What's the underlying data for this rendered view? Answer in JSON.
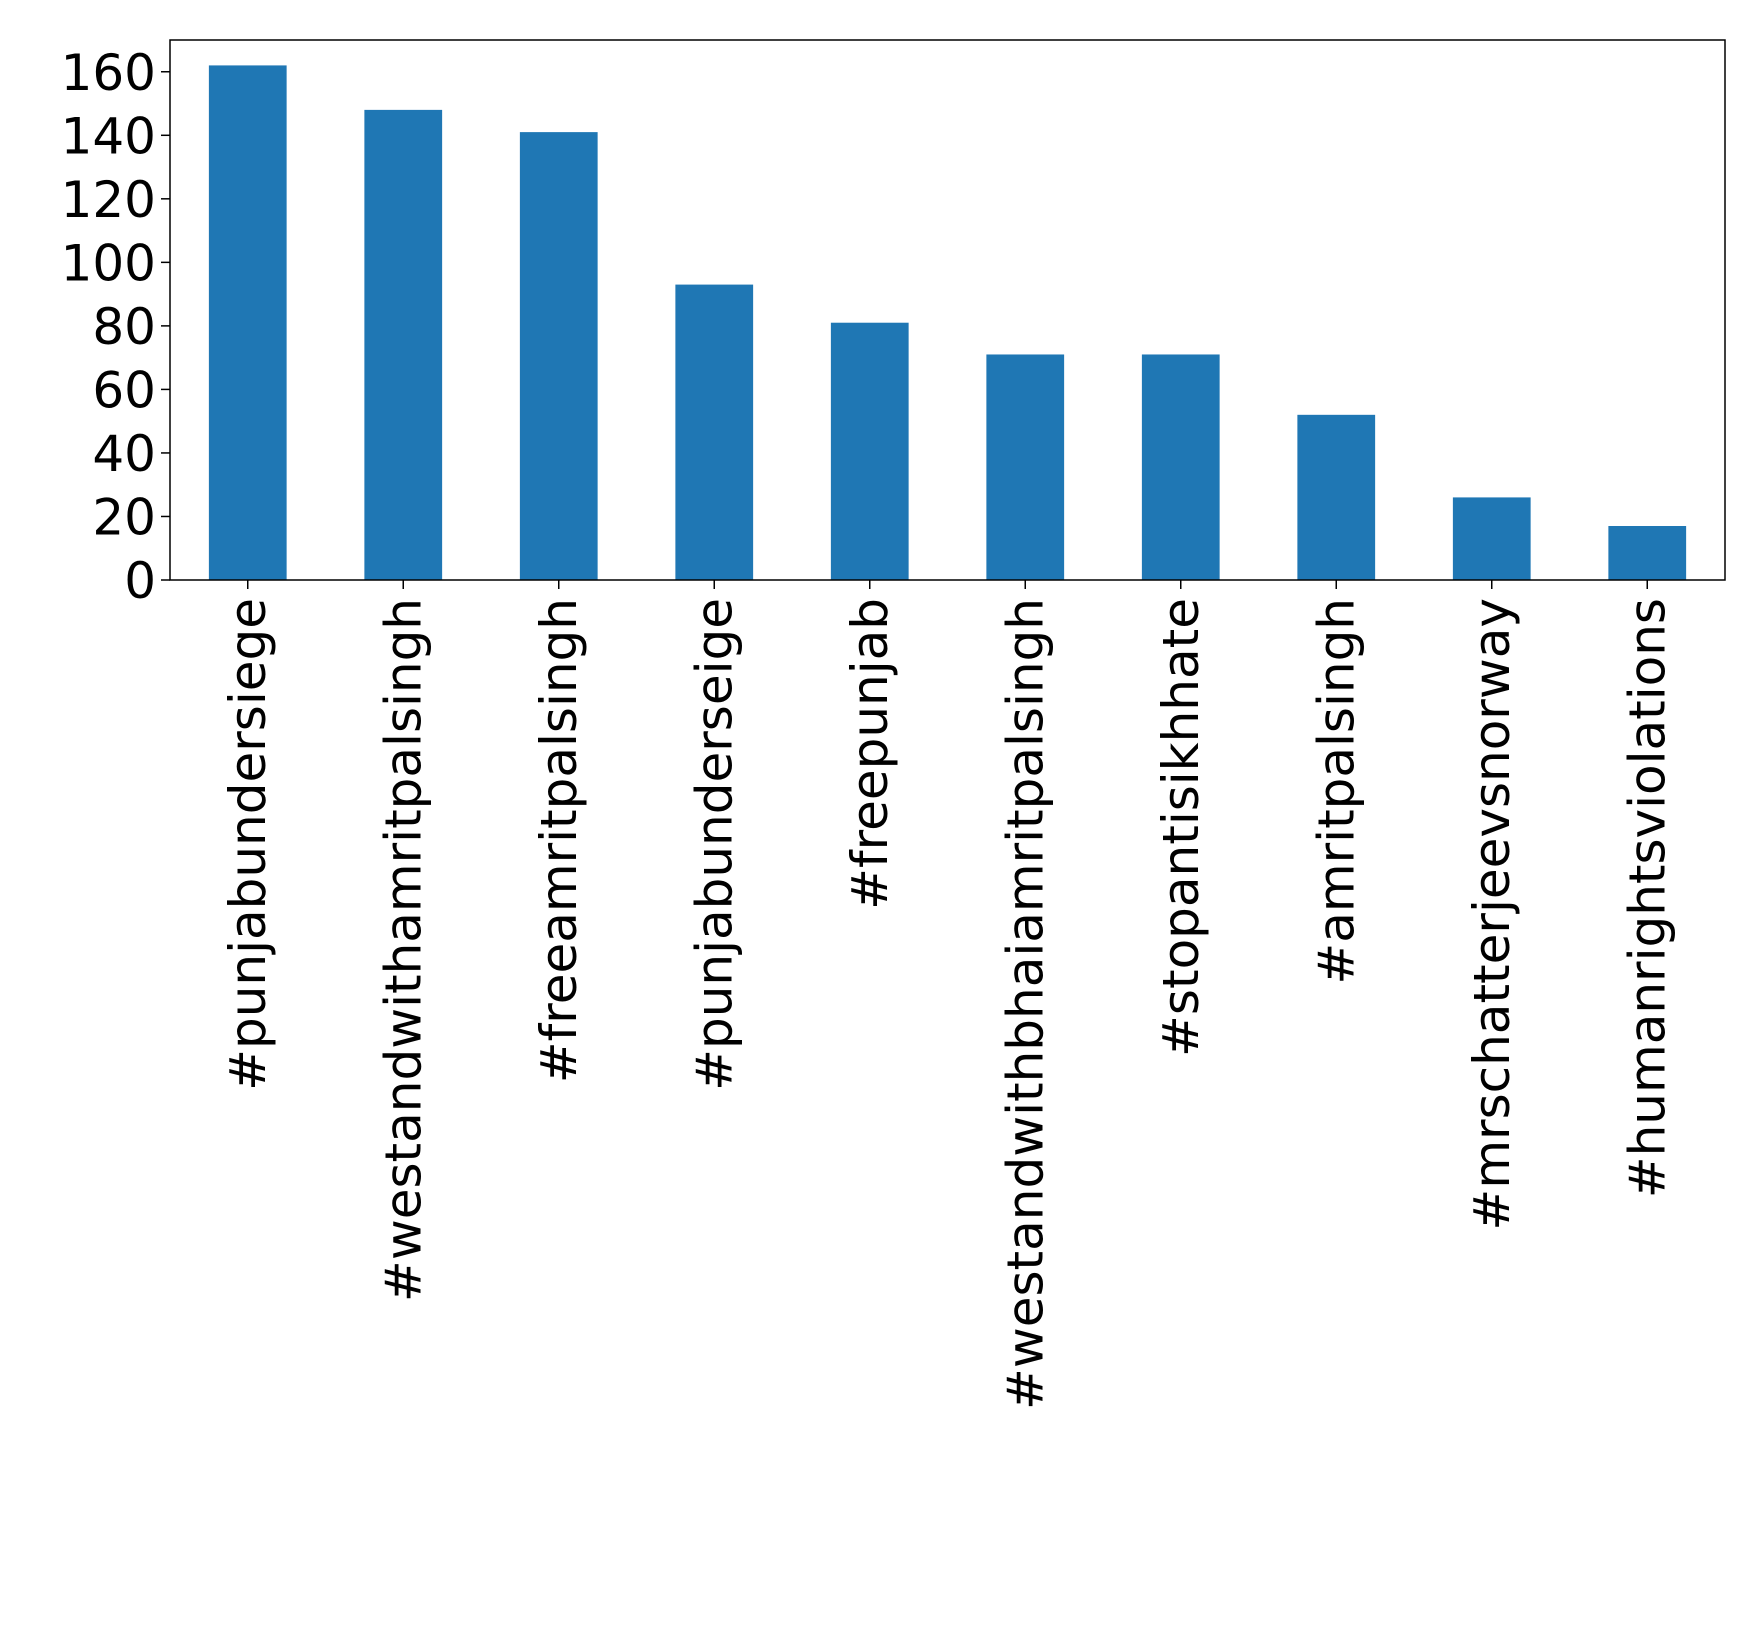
{
  "chart_data": {
    "type": "bar",
    "title": "",
    "xlabel": "",
    "ylabel": "",
    "categories": [
      "#punjabundersiege",
      "#westandwithamritpalsingh",
      "#freeamritpalsingh",
      "#punjabunderseige",
      "#freepunjab",
      "#westandwithbhaiamritpalsingh",
      "#stopantisikhhate",
      "#amritpalsingh",
      "#mrschatterjeevsnorway",
      "#humanrightsviolations"
    ],
    "values": [
      162,
      148,
      141,
      93,
      81,
      71,
      71,
      52,
      26,
      17
    ],
    "ylim": [
      0,
      170
    ],
    "yticks": [
      "0",
      "20",
      "40",
      "60",
      "80",
      "100",
      "120",
      "140",
      "160"
    ],
    "grid": false,
    "legend": "none",
    "bar_color": "#1f77b4"
  }
}
